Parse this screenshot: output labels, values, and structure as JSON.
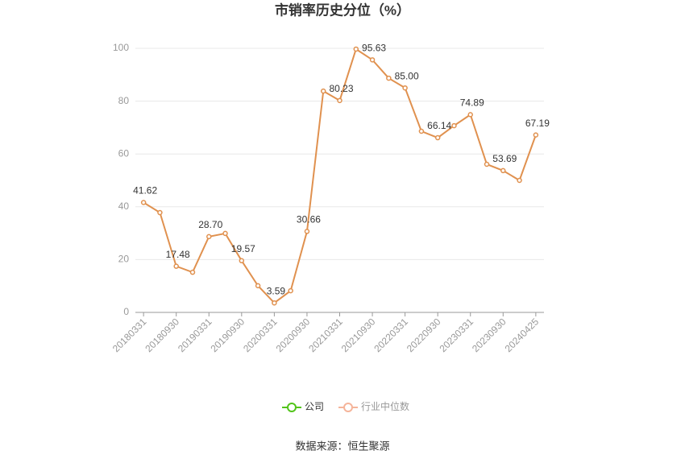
{
  "chart_data": {
    "type": "line",
    "title": "市销率历史分位（%）",
    "categories": [
      "20180331",
      null,
      "20180930",
      null,
      "20190331",
      null,
      "20190930",
      null,
      "20200331",
      null,
      "20200930",
      null,
      "20210331",
      null,
      "20210930",
      null,
      "20220331",
      null,
      "20220930",
      null,
      "20230331",
      null,
      "20230930",
      null,
      "20240425"
    ],
    "series": [
      {
        "color": "#e0914f",
        "values": [
          41.62,
          37.8,
          17.48,
          15.2,
          28.7,
          29.9,
          19.57,
          10.1,
          3.59,
          8.2,
          30.66,
          83.8,
          80.23,
          99.7,
          95.63,
          88.7,
          85.0,
          68.6,
          66.14,
          70.7,
          74.89,
          56.1,
          53.69,
          50.0,
          67.19
        ],
        "value_labels": [
          "41.62",
          null,
          "17.48",
          null,
          "28.70",
          null,
          "19.57",
          null,
          "3.59",
          null,
          "30.66",
          null,
          "80.23",
          null,
          "95.63",
          null,
          "85.00",
          null,
          "66.14",
          null,
          "74.89",
          null,
          "53.69",
          null,
          "67.19"
        ]
      }
    ],
    "legend": [
      {
        "name": "公司",
        "color": "#52c41a"
      },
      {
        "name": "行业中位数",
        "color": "#f5b49a"
      }
    ],
    "ylim": [
      0,
      100
    ],
    "yticks": [
      0,
      20,
      40,
      60,
      80,
      100
    ],
    "grid": true,
    "source": "数据来源：恒生聚源"
  }
}
